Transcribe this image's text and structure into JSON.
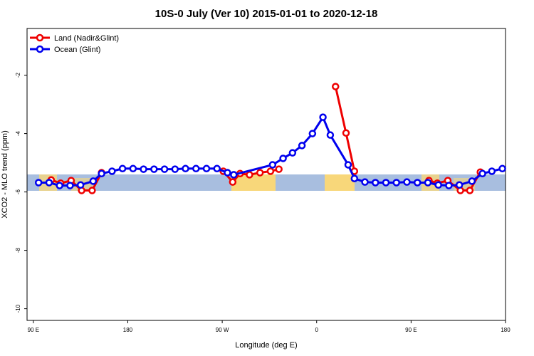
{
  "chart_data": {
    "type": "line",
    "title": "10S-0 July (Ver 10)   2015-01-01 to 2020-12-18",
    "x_label": "Longitude (deg E)",
    "y_label": "XCO2 - MLO trend (ppm)",
    "xlim": [
      84,
      540
    ],
    "ylim": [
      -10.4,
      -0.4
    ],
    "xticks": [
      {
        "value": 90,
        "label": "90 E"
      },
      {
        "value": 180,
        "label": "180"
      },
      {
        "value": 270,
        "label": "90 W"
      },
      {
        "value": 360,
        "label": "0"
      },
      {
        "value": 450,
        "label": "90 E"
      },
      {
        "value": 540,
        "label": "180"
      }
    ],
    "yticks": [
      -2,
      -4,
      -6,
      -8,
      -10
    ],
    "legend": "top-left",
    "series": [
      {
        "name": "Land (Nadir&Glint)",
        "color": "#ee0000",
        "x": [
          107,
          116,
          126,
          136,
          146,
          155,
          null,
          271,
          280,
          287,
          296,
          306,
          316,
          324,
          null,
          378,
          388,
          396,
          null,
          467,
          475,
          485,
          497,
          506,
          516
        ],
        "values": [
          -5.59,
          -5.7,
          -5.61,
          -5.95,
          -5.95,
          -5.34,
          null,
          -5.29,
          -5.66,
          -5.37,
          -5.41,
          -5.34,
          -5.29,
          -5.22,
          null,
          -2.39,
          -3.98,
          -5.29,
          null,
          -5.61,
          -5.7,
          -5.61,
          -5.95,
          -5.95,
          -5.32
        ]
      },
      {
        "name": "Ocean (Glint)",
        "color": "#0000ee",
        "x": [
          95,
          105,
          115,
          125,
          135,
          147,
          155,
          165,
          175,
          185,
          195,
          205,
          215,
          225,
          235,
          245,
          255,
          265,
          275,
          281,
          318,
          328,
          337,
          346,
          356,
          366,
          373,
          390,
          396,
          406,
          416,
          426,
          436,
          446,
          456,
          466,
          476,
          486,
          496,
          508,
          518,
          527,
          537
        ],
        "values": [
          -5.68,
          -5.68,
          -5.78,
          -5.78,
          -5.76,
          -5.63,
          -5.37,
          -5.29,
          -5.2,
          -5.2,
          -5.22,
          -5.22,
          -5.22,
          -5.22,
          -5.2,
          -5.2,
          -5.2,
          -5.2,
          -5.34,
          -5.41,
          -5.07,
          -4.85,
          -4.66,
          -4.41,
          -4.0,
          -3.44,
          -4.05,
          -5.07,
          -5.54,
          -5.66,
          -5.68,
          -5.68,
          -5.68,
          -5.66,
          -5.68,
          -5.68,
          -5.76,
          -5.78,
          -5.76,
          -5.63,
          -5.37,
          -5.29,
          -5.2
        ]
      }
    ]
  }
}
